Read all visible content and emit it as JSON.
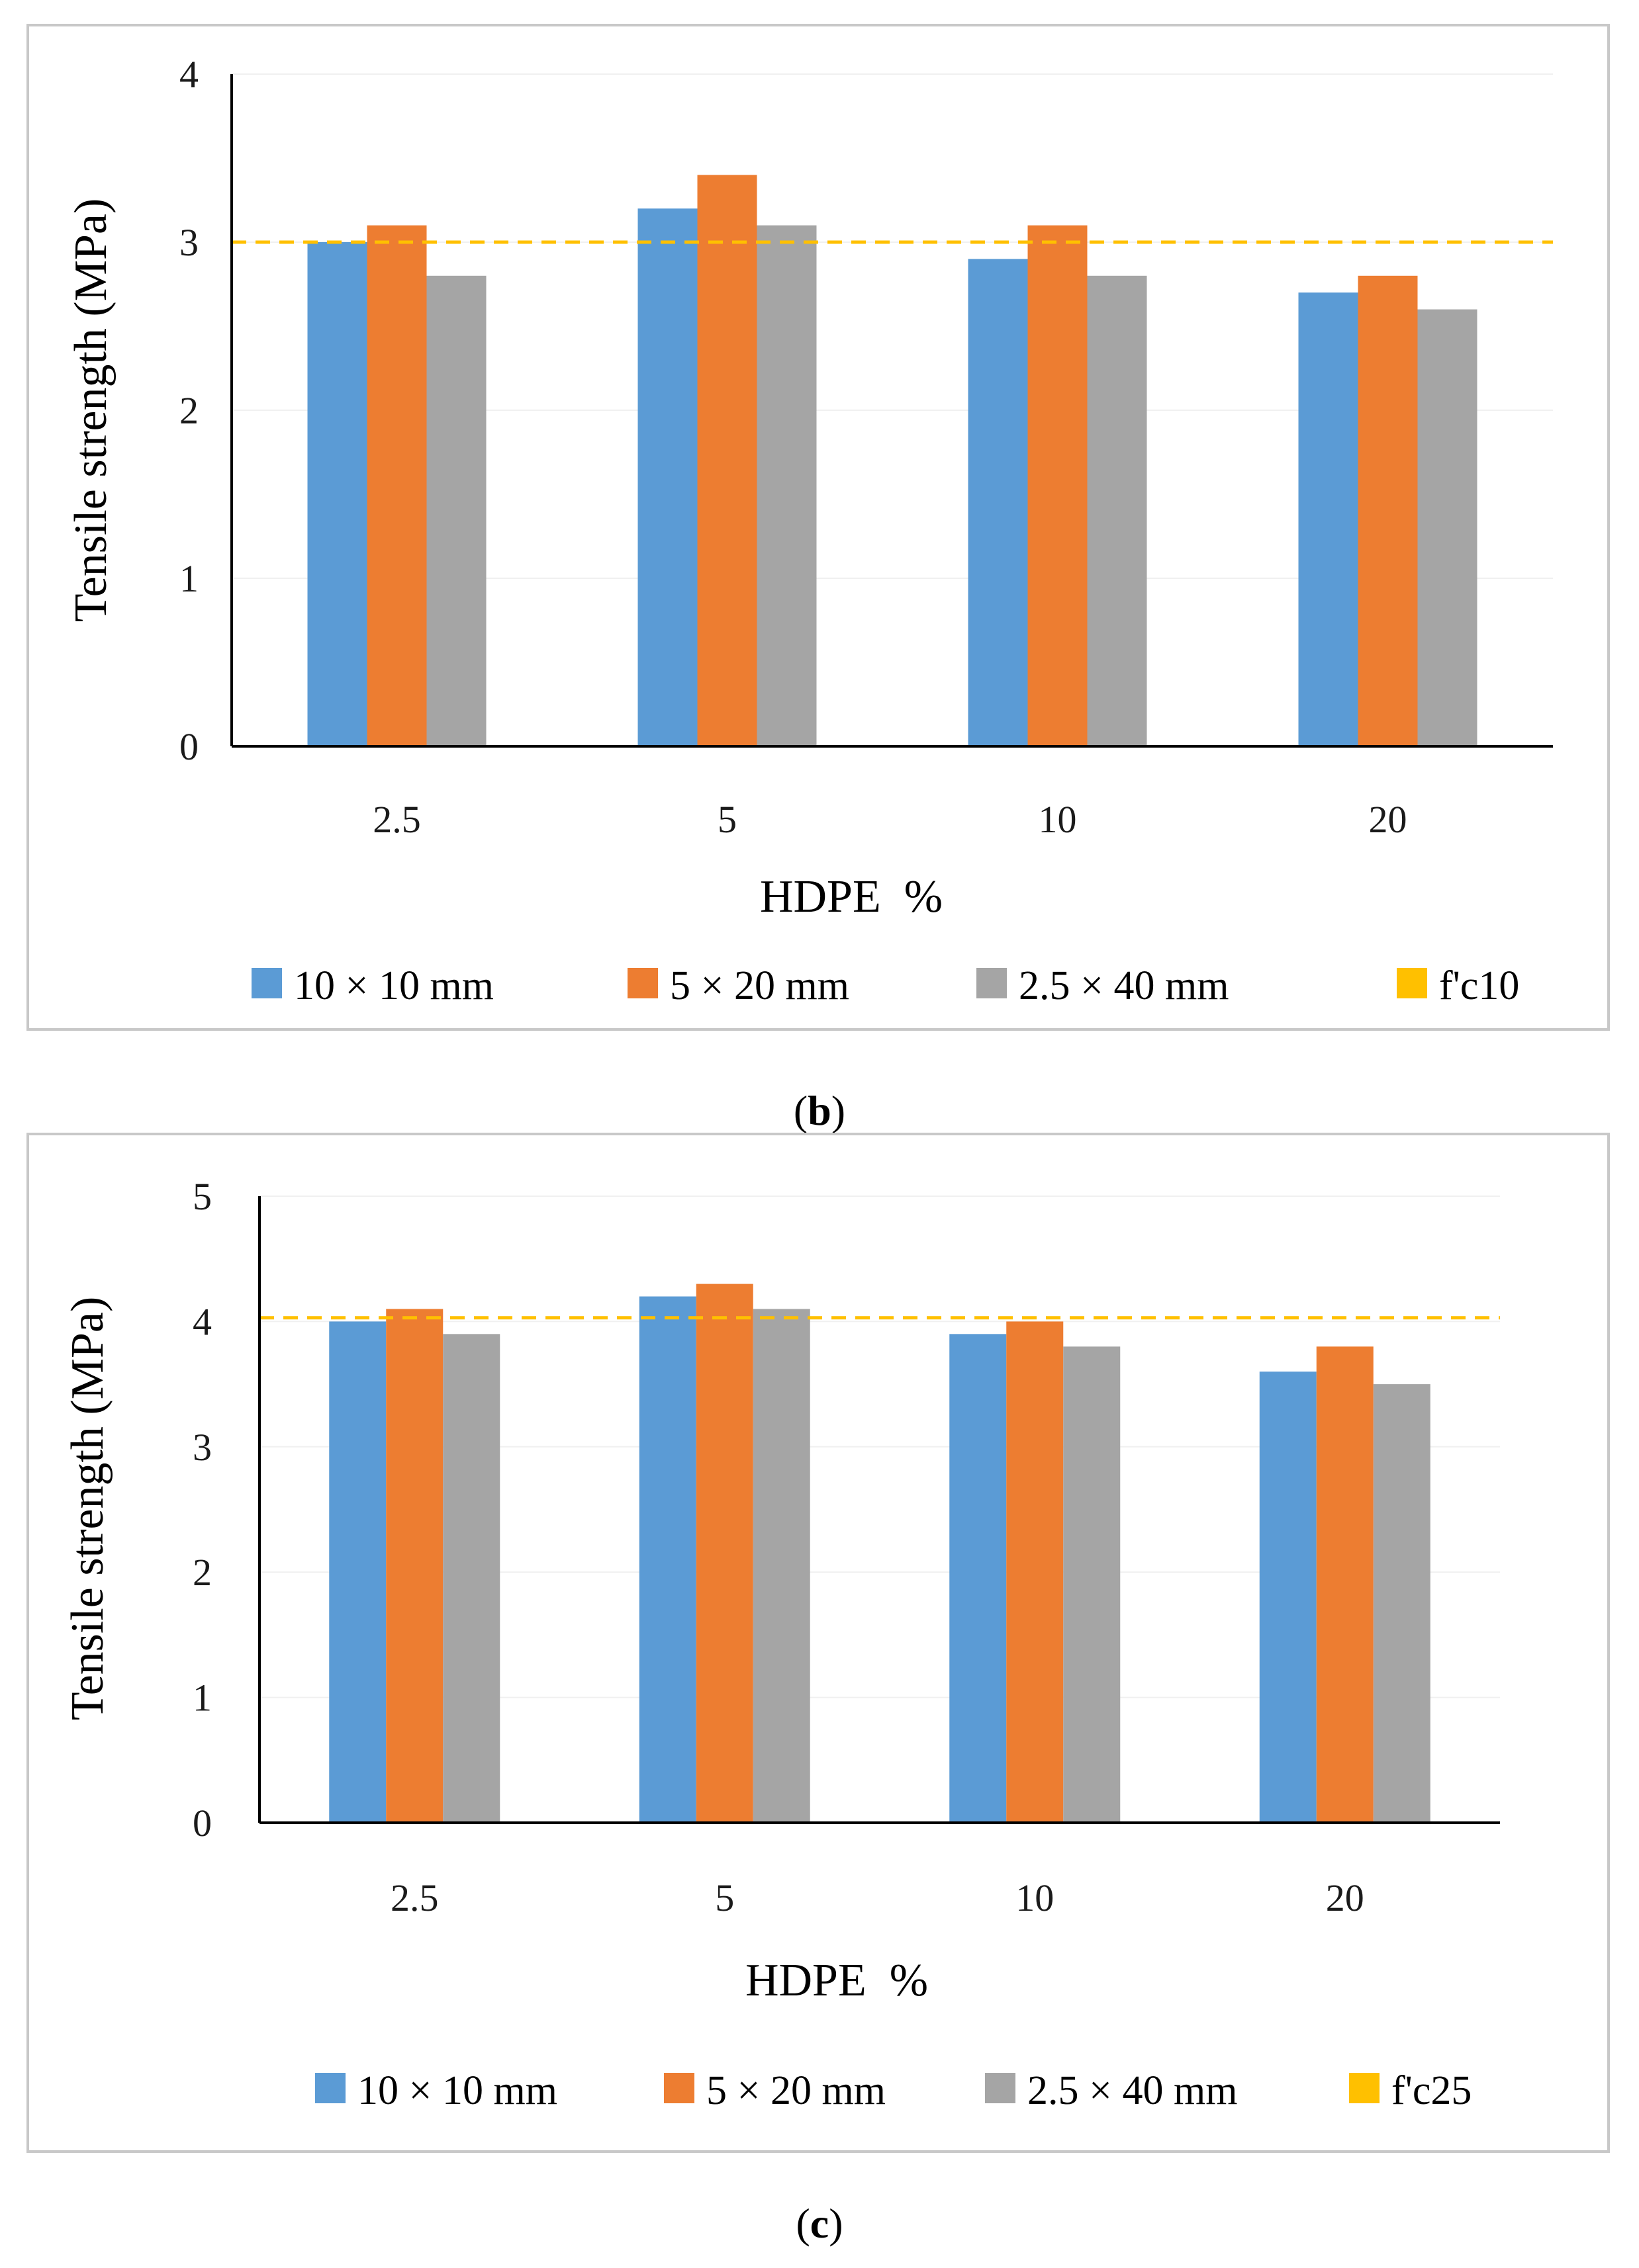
{
  "charts": [
    {
      "id": "b",
      "chart_data": {
        "type": "bar",
        "categories": [
          "2.5",
          "5",
          "10",
          "20"
        ],
        "series": [
          {
            "name": "10 × 10 mm",
            "color": "#5b9bd5",
            "values": [
              3.0,
              3.2,
              2.9,
              2.7
            ]
          },
          {
            "name": "5 × 20 mm",
            "color": "#ed7d31",
            "values": [
              3.1,
              3.4,
              3.1,
              2.8
            ]
          },
          {
            "name": "2.5 × 40 mm",
            "color": "#a5a5a5",
            "values": [
              2.8,
              3.1,
              2.8,
              2.6
            ]
          }
        ],
        "reference_line": {
          "name": "f'c10",
          "value": 3.0,
          "color": "#ffc000",
          "style": "dashed"
        },
        "xlabel": "HDPE  %",
        "ylabel": "Tensile strength (MPa)",
        "ylim": [
          0,
          4
        ],
        "yticks": [
          "0",
          "1",
          "2",
          "3",
          "4"
        ],
        "legend_position": "bottom"
      },
      "caption": {
        "open": "(",
        "letter": "b",
        "close": ")"
      }
    },
    {
      "id": "c",
      "chart_data": {
        "type": "bar",
        "categories": [
          "2.5",
          "5",
          "10",
          "20"
        ],
        "series": [
          {
            "name": "10 × 10 mm",
            "color": "#5b9bd5",
            "values": [
              4.0,
              4.2,
              3.9,
              3.6
            ]
          },
          {
            "name": "5 × 20 mm",
            "color": "#ed7d31",
            "values": [
              4.1,
              4.3,
              4.0,
              3.8
            ]
          },
          {
            "name": "2.5 × 40 mm",
            "color": "#a5a5a5",
            "values": [
              3.9,
              4.1,
              3.8,
              3.5
            ]
          }
        ],
        "reference_line": {
          "name": "f'c25",
          "value": 4.03,
          "color": "#ffc000",
          "style": "dashed"
        },
        "xlabel": "HDPE  %",
        "ylabel": "Tensile strength (MPa)",
        "ylim": [
          0,
          5
        ],
        "yticks": [
          "0",
          "1",
          "2",
          "3",
          "4",
          "5"
        ],
        "legend_position": "bottom"
      },
      "caption": {
        "open": "(",
        "letter": "c",
        "close": ")"
      }
    }
  ]
}
